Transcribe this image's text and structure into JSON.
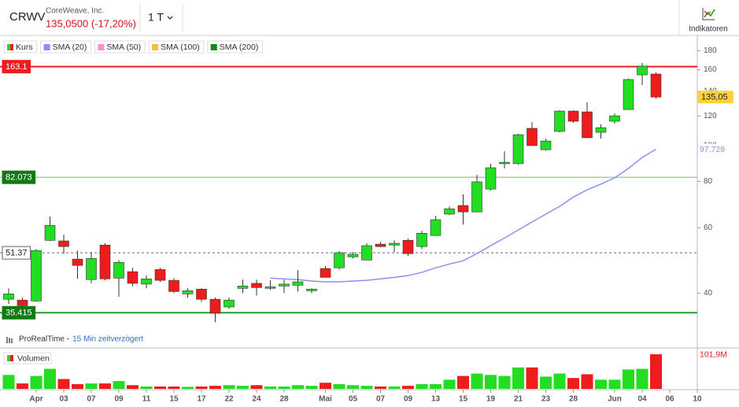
{
  "header": {
    "symbol": "CRWV",
    "company": "CoreWeave, Inc.",
    "quote": "135,0500 (-17,20%)",
    "period": "1 T",
    "button": "Indikatoren"
  },
  "chart_data": {
    "type": "candlestick",
    "ylog": true,
    "ylim": [
      28.6,
      197
    ],
    "yticks": [
      40,
      60,
      80,
      100,
      120,
      140,
      160,
      180
    ],
    "categories": [
      null,
      null,
      "Apr",
      null,
      "03",
      null,
      "07",
      null,
      "09",
      null,
      "11",
      null,
      "15",
      null,
      "17",
      null,
      "22",
      null,
      "24",
      null,
      "28",
      null,
      null,
      "Mai",
      null,
      "05",
      null,
      "07",
      null,
      "09",
      null,
      "13",
      null,
      "15",
      null,
      "19",
      null,
      "21",
      null,
      "23",
      null,
      "28",
      null,
      null,
      "Jun",
      null,
      "04",
      null,
      "06",
      null,
      "10"
    ],
    "price": {
      "name": "Kurs",
      "up_color": "#22dd22",
      "down_color": "#ee1c1c",
      "open": [
        38.5,
        38.3,
        38.1,
        55.5,
        55.3,
        49.4,
        43.5,
        53.9,
        43.9,
        45.7,
        42.3,
        46.3,
        43.3,
        39.8,
        41.0,
        38.5,
        36.7,
        41.2,
        42.5,
        41.2,
        41.8,
        42.0,
        40.6,
        46.6,
        46.8,
        50.1,
        49.1,
        54.2,
        53.9,
        55.5,
        53.4,
        57.2,
        65.3,
        68.9,
        66.2,
        76.3,
        89.3,
        89.3,
        111.2,
        97.4,
        109.1,
        123.8,
        123.2,
        108.5,
        116.2,
        125.0,
        155.0,
        155.8,
        null,
        null,
        null
      ],
      "high": [
        41.2,
        38.9,
        52.6,
        64.3,
        57.5,
        52.1,
        51.6,
        54.5,
        49.1,
        46.8,
        44.6,
        46.8,
        43.9,
        41.2,
        41.2,
        38.9,
        38.9,
        43.5,
        43.5,
        43.3,
        43.5,
        46.1,
        41.2,
        47.3,
        51.9,
        51.6,
        54.5,
        55.0,
        55.5,
        56.1,
        58.9,
        64.6,
        68.5,
        73.8,
        83.3,
        89.3,
        96.5,
        107.5,
        115.6,
        104.3,
        124.4,
        124.4,
        130.7,
        114.0,
        122.0,
        151.3,
        166.9,
        157.3,
        null,
        null,
        null
      ],
      "low": [
        37.4,
        36.7,
        37.9,
        55.3,
        51.1,
        43.7,
        42.5,
        43.3,
        39.1,
        41.8,
        41.2,
        42.9,
        40.0,
        38.9,
        37.9,
        33.4,
        36.3,
        40.0,
        39.4,
        40.8,
        40.0,
        40.4,
        40.0,
        44.1,
        46.3,
        49.6,
        49.1,
        53.2,
        51.6,
        50.4,
        52.6,
        57.2,
        64.9,
        61.2,
        66.2,
        75.6,
        86.7,
        88.8,
        99.9,
        96.9,
        108.5,
        115.1,
        104.9,
        104.3,
        114.5,
        125.0,
        145.5,
        133.8,
        null,
        null,
        null
      ],
      "close": [
        39.8,
        37.0,
        52.1,
        60.9,
        53.4,
        47.5,
        49.6,
        43.7,
        48.4,
        42.5,
        43.7,
        43.3,
        40.4,
        40.6,
        38.5,
        35.3,
        38.3,
        41.8,
        41.4,
        41.6,
        42.3,
        42.9,
        41.0,
        44.1,
        51.4,
        50.9,
        53.7,
        53.4,
        54.5,
        51.1,
        58.0,
        63.1,
        67.5,
        66.2,
        79.8,
        87.1,
        90.1,
        106.9,
        99.9,
        102.8,
        123.8,
        116.2,
        104.9,
        111.7,
        120.2,
        150.6,
        163.6,
        135.05,
        null,
        null,
        null
      ],
      "tag": {
        "value": 135.05,
        "label": "135,05",
        "color": "#ffd23c"
      }
    },
    "indicators": [
      {
        "name": "SMA (20)",
        "color": "#8f8ff0",
        "values": [
          null,
          null,
          null,
          null,
          null,
          null,
          null,
          null,
          null,
          null,
          null,
          null,
          null,
          null,
          null,
          null,
          null,
          null,
          null,
          43.9,
          43.7,
          43.5,
          43.1,
          42.9,
          42.9,
          43.1,
          43.3,
          43.7,
          44.1,
          44.6,
          45.5,
          46.8,
          47.9,
          48.9,
          51.1,
          53.7,
          56.3,
          59.2,
          62.2,
          65.3,
          68.5,
          72.6,
          75.9,
          78.7,
          81.8,
          86.7,
          92.8,
          97.729,
          null,
          null,
          null
        ],
        "tag": {
          "value": 97.729,
          "label": "97,729"
        }
      },
      {
        "name": "SMA (50)",
        "color": "#f58fd0"
      },
      {
        "name": "SMA (100)",
        "color": "#f7b844"
      },
      {
        "name": "SMA (200)",
        "color": "#138a13"
      }
    ],
    "levels": [
      {
        "value": 163.1,
        "color": "#ee1c1c",
        "label_fill": "#ee1c1c",
        "label_color": "#ffffff",
        "dashed": false,
        "width": 2
      },
      {
        "value": 82.073,
        "color": "#9fd19f",
        "label_fill": "#137a13",
        "label_color": "#ffffff",
        "dashed": false,
        "width": 1.5
      },
      {
        "value": 51.37,
        "color": "#999999",
        "label_fill": "#ffffff",
        "label_color": "#222222",
        "dashed": true,
        "width": 1.5
      },
      {
        "value": 35.415,
        "color": "#2a9a2a",
        "label_fill": "#137a13",
        "label_color": "#ffffff",
        "dashed": false,
        "width": 2
      }
    ],
    "volume": {
      "name": "Volumen",
      "ylim": [
        0,
        111
      ],
      "values": [
        41,
        16,
        38,
        59,
        29,
        14,
        16,
        16,
        23,
        11,
        7,
        7,
        7,
        6,
        7,
        9,
        11,
        9,
        11,
        7,
        7,
        11,
        9,
        18,
        14,
        11,
        9,
        7,
        7,
        9,
        14,
        14,
        27,
        38,
        45,
        41,
        38,
        63,
        63,
        36,
        45,
        32,
        43,
        27,
        27,
        57,
        59,
        101.9,
        null,
        null,
        null
      ],
      "tag": {
        "value": 101.9,
        "label": "101,9M",
        "color": "#ee1c1c"
      }
    },
    "source": {
      "vendor": "ProRealTime -",
      "delay": "15 Min zeitverzögert"
    }
  }
}
